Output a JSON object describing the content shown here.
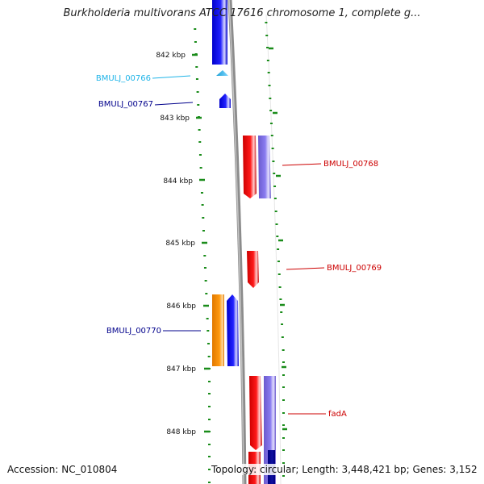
{
  "title": "Burkholderia multivorans ATCC 17616 chromosome 1, complete g...",
  "footer": {
    "accession": "Accession: NC_010804",
    "topology": "Topology: circular; Length: 3,448,421 bp; Genes: 3,152"
  },
  "colors": {
    "backbone": "#8c8c8c",
    "tick": "#1a8c1a",
    "gene_blue": "#0000ee",
    "gene_red": "#ee0000",
    "gene_orange": "#ff8c00",
    "gene_lavender": "#7b68ee",
    "gene_cyan": "#1fb4e8",
    "gene_navy": "#00008b"
  },
  "ticks": [
    {
      "label": "842 kbp"
    },
    {
      "label": "843 kbp"
    },
    {
      "label": "844 kbp"
    },
    {
      "label": "845 kbp"
    },
    {
      "label": "846 kbp"
    },
    {
      "label": "847 kbp"
    },
    {
      "label": "848 kbp"
    }
  ],
  "gene_labels": [
    {
      "name": "BMULJ_00766",
      "color": "#1fb4e8"
    },
    {
      "name": "BMULJ_00767",
      "color": "#00008b"
    },
    {
      "name": "BMULJ_00768",
      "color": "#cc0000"
    },
    {
      "name": "BMULJ_00769",
      "color": "#cc0000"
    },
    {
      "name": "BMULJ_00770",
      "color": "#00008b"
    },
    {
      "name": "fadA",
      "color": "#cc0000"
    }
  ]
}
